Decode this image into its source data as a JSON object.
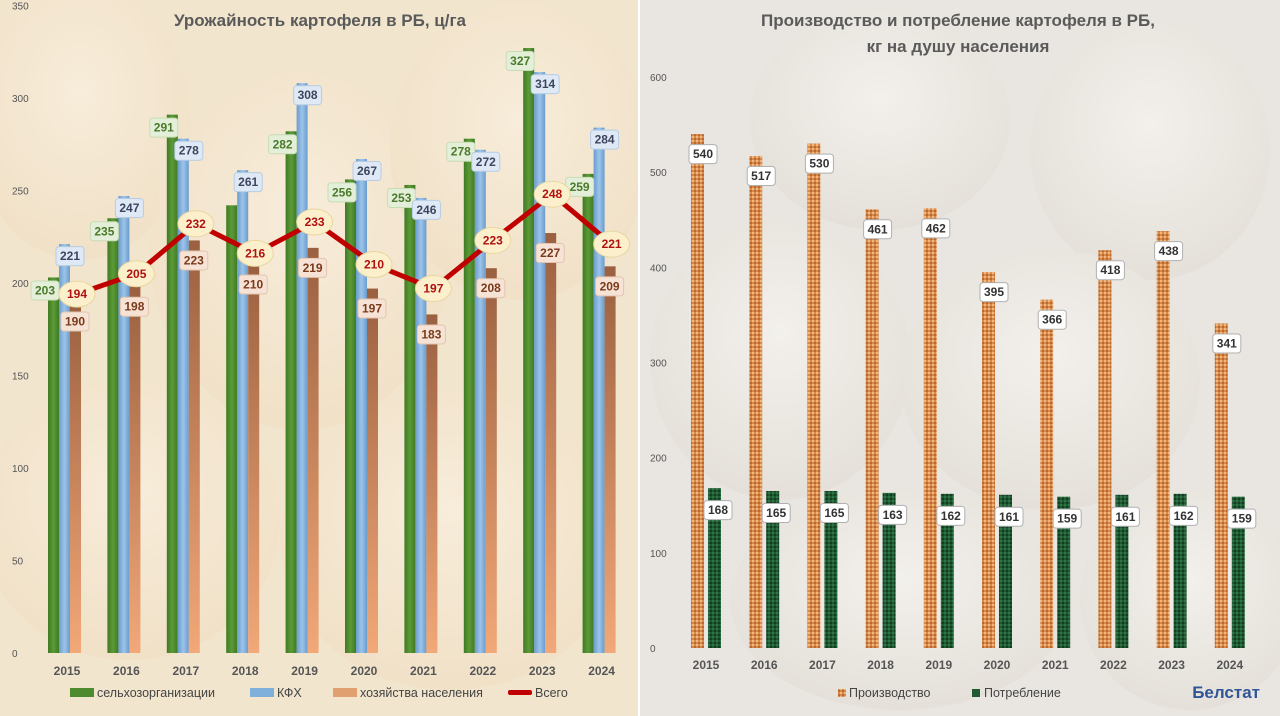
{
  "chart_data": [
    {
      "type": "bar",
      "title": "Урожайность картофеля в РБ, ц/га",
      "xlabel": "",
      "ylabel": "",
      "ylim": [
        0,
        350
      ],
      "yticks": [
        "0",
        "50",
        "100",
        "150",
        "200",
        "250",
        "300",
        "350"
      ],
      "categories": [
        "2015",
        "2016",
        "2017",
        "2018",
        "2019",
        "2020",
        "2021",
        "2022",
        "2023",
        "2024"
      ],
      "series": [
        {
          "name": "сельхозорганизации",
          "kind": "bar",
          "color": "#4e8a2e",
          "values": [
            203,
            235,
            291,
            242,
            282,
            256,
            253,
            278,
            327,
            259
          ],
          "labels": [
            "203",
            "235",
            "291",
            "",
            "282",
            "256",
            "253",
            "278",
            "327",
            "259"
          ]
        },
        {
          "name": "КФХ",
          "kind": "bar",
          "color": "#7fb0dc",
          "values": [
            221,
            247,
            278,
            261,
            308,
            267,
            246,
            272,
            314,
            284
          ],
          "labels": [
            "221",
            "247",
            "278",
            "261",
            "308",
            "267",
            "246",
            "272",
            "314",
            "284"
          ]
        },
        {
          "name": "хозяйства населения",
          "kind": "bar",
          "color": "#b87a50",
          "values": [
            190,
            198,
            223,
            210,
            219,
            197,
            183,
            208,
            227,
            209
          ],
          "labels": [
            "190",
            "198",
            "223",
            "210",
            "219",
            "197",
            "183",
            "208",
            "227",
            "209"
          ]
        },
        {
          "name": "Всего",
          "kind": "line",
          "color": "#c00000",
          "values": [
            194,
            205,
            232,
            216,
            233,
            210,
            197,
            223,
            248,
            221
          ],
          "labels": [
            "194",
            "205",
            "232",
            "216",
            "233",
            "210",
            "197",
            "223",
            "248",
            "221"
          ]
        }
      ],
      "legend": "bottom",
      "grid": false
    },
    {
      "type": "bar",
      "title": "Производство и потребление картофеля в РБ,",
      "subtitle": "кг на душу населения",
      "xlabel": "",
      "ylabel": "",
      "ylim": [
        0,
        600
      ],
      "yticks": [
        "0",
        "100",
        "200",
        "300",
        "400",
        "500",
        "600"
      ],
      "categories": [
        "2015",
        "2016",
        "2017",
        "2018",
        "2019",
        "2020",
        "2021",
        "2022",
        "2023",
        "2024"
      ],
      "series": [
        {
          "name": "Производство",
          "color": "#d98a4a",
          "values": [
            540,
            517,
            530,
            461,
            462,
            395,
            366,
            418,
            438,
            341
          ],
          "labels": [
            "540",
            "517",
            "530",
            "461",
            "462",
            "395",
            "366",
            "418",
            "438",
            "341"
          ]
        },
        {
          "name": "Потребление",
          "color": "#1f5a32",
          "values": [
            168,
            165,
            165,
            163,
            162,
            161,
            159,
            161,
            162,
            159
          ],
          "labels": [
            "168",
            "165",
            "165",
            "163",
            "162",
            "161",
            "159",
            "161",
            "162",
            "159"
          ]
        }
      ],
      "legend": "bottom",
      "grid": false
    }
  ],
  "source": "Белстат"
}
